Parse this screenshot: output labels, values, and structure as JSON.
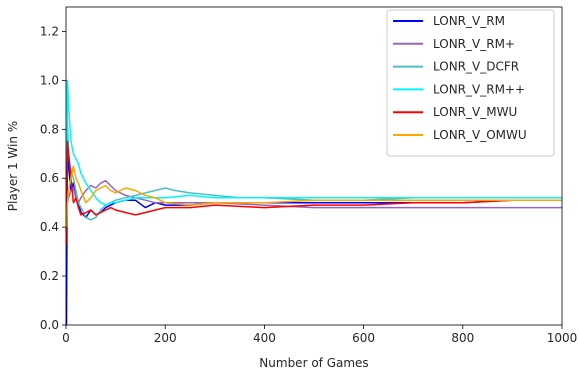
{
  "chart_data": {
    "type": "line",
    "title": "",
    "xlabel": "Number of Games",
    "ylabel": "Player 1 Win %",
    "xlim": [
      0,
      1000
    ],
    "ylim": [
      0.0,
      1.3
    ],
    "xticks": [
      0,
      200,
      400,
      600,
      800,
      1000
    ],
    "yticks": [
      0.0,
      0.2,
      0.4,
      0.6,
      0.8,
      1.0,
      1.2
    ],
    "grid": false,
    "legend_position": "top-right",
    "series": [
      {
        "name": "LONR_V_RM",
        "color": "#0000ff",
        "x": [
          1,
          3,
          5,
          10,
          15,
          20,
          25,
          30,
          40,
          50,
          60,
          70,
          80,
          90,
          100,
          120,
          140,
          160,
          180,
          200,
          250,
          300,
          400,
          500,
          600,
          700,
          800,
          900,
          1000
        ],
        "y": [
          0.0,
          0.8,
          0.65,
          0.55,
          0.58,
          0.52,
          0.5,
          0.46,
          0.44,
          0.47,
          0.45,
          0.46,
          0.48,
          0.49,
          0.5,
          0.51,
          0.51,
          0.48,
          0.5,
          0.49,
          0.49,
          0.5,
          0.5,
          0.5,
          0.5,
          0.5,
          0.5,
          0.51,
          0.51
        ]
      },
      {
        "name": "LONR_V_RM+",
        "color": "#9467bd",
        "x": [
          1,
          3,
          5,
          10,
          15,
          20,
          25,
          30,
          40,
          50,
          60,
          70,
          80,
          90,
          100,
          120,
          140,
          160,
          180,
          200,
          250,
          300,
          400,
          500,
          600,
          700,
          800,
          900,
          1000
        ],
        "y": [
          0.5,
          0.5,
          0.52,
          0.55,
          0.56,
          0.52,
          0.5,
          0.52,
          0.55,
          0.57,
          0.56,
          0.58,
          0.59,
          0.57,
          0.55,
          0.53,
          0.52,
          0.51,
          0.5,
          0.5,
          0.5,
          0.5,
          0.49,
          0.48,
          0.48,
          0.48,
          0.48,
          0.48,
          0.48
        ]
      },
      {
        "name": "LONR_V_DCFR",
        "color": "#4ac1c1",
        "x": [
          1,
          3,
          5,
          10,
          15,
          20,
          25,
          30,
          40,
          50,
          60,
          70,
          80,
          90,
          100,
          120,
          140,
          160,
          180,
          200,
          220,
          250,
          300,
          350,
          400,
          500,
          600,
          700,
          800,
          900,
          1000
        ],
        "y": [
          1.0,
          0.83,
          0.7,
          0.63,
          0.6,
          0.55,
          0.5,
          0.48,
          0.44,
          0.43,
          0.44,
          0.47,
          0.49,
          0.5,
          0.51,
          0.52,
          0.53,
          0.54,
          0.55,
          0.56,
          0.55,
          0.54,
          0.53,
          0.52,
          0.52,
          0.51,
          0.51,
          0.52,
          0.52,
          0.52,
          0.52
        ]
      },
      {
        "name": "LONR_V_RM++",
        "color": "#00f5ff",
        "x": [
          1,
          3,
          5,
          10,
          15,
          20,
          25,
          30,
          40,
          50,
          60,
          70,
          80,
          90,
          100,
          120,
          140,
          160,
          180,
          200,
          250,
          300,
          400,
          500,
          600,
          700,
          800,
          900,
          1000
        ],
        "y": [
          0.5,
          1.0,
          0.9,
          0.75,
          0.7,
          0.68,
          0.66,
          0.62,
          0.58,
          0.55,
          0.52,
          0.5,
          0.49,
          0.5,
          0.5,
          0.51,
          0.52,
          0.52,
          0.52,
          0.52,
          0.53,
          0.52,
          0.52,
          0.52,
          0.52,
          0.52,
          0.52,
          0.52,
          0.52
        ]
      },
      {
        "name": "LONR_V_MWU",
        "color": "#ff0000",
        "x": [
          1,
          3,
          5,
          10,
          15,
          20,
          25,
          30,
          40,
          50,
          60,
          70,
          80,
          90,
          100,
          120,
          140,
          160,
          180,
          200,
          250,
          300,
          400,
          500,
          600,
          700,
          800,
          900,
          1000
        ],
        "y": [
          0.33,
          0.75,
          0.7,
          0.6,
          0.5,
          0.52,
          0.48,
          0.45,
          0.46,
          0.47,
          0.45,
          0.46,
          0.47,
          0.48,
          0.47,
          0.46,
          0.45,
          0.46,
          0.47,
          0.48,
          0.48,
          0.49,
          0.48,
          0.49,
          0.49,
          0.5,
          0.5,
          0.51,
          0.51
        ]
      },
      {
        "name": "LONR_V_OMWU",
        "color": "#ffa500",
        "x": [
          1,
          3,
          5,
          10,
          15,
          20,
          25,
          30,
          40,
          50,
          60,
          70,
          80,
          90,
          100,
          120,
          140,
          160,
          180,
          200,
          250,
          300,
          400,
          500,
          600,
          700,
          800,
          900,
          1000
        ],
        "y": [
          0.4,
          0.5,
          0.55,
          0.6,
          0.65,
          0.6,
          0.58,
          0.55,
          0.5,
          0.52,
          0.55,
          0.56,
          0.57,
          0.55,
          0.54,
          0.56,
          0.55,
          0.53,
          0.52,
          0.5,
          0.49,
          0.5,
          0.5,
          0.51,
          0.51,
          0.51,
          0.51,
          0.51,
          0.51
        ]
      }
    ]
  }
}
